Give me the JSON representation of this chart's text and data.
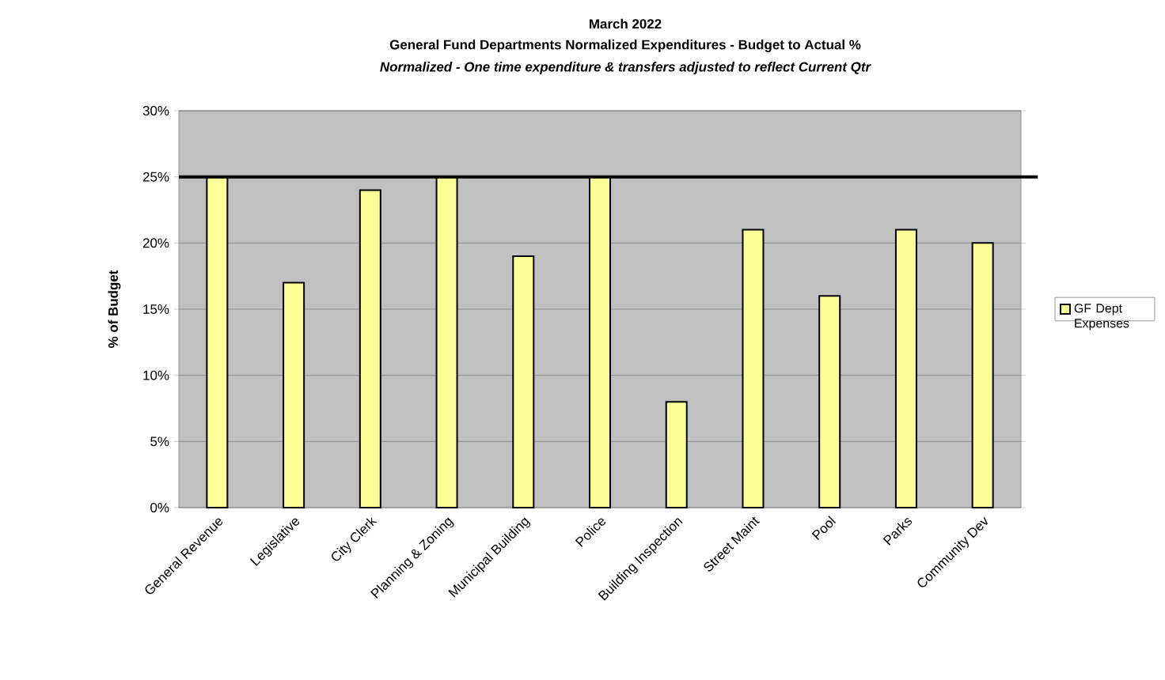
{
  "chart_data": {
    "type": "bar",
    "title": "March 2022",
    "subtitle": "General Fund Departments Normalized Expenditures -  Budget to Actual %",
    "annotations": [
      "Normalized - One time expenditure & transfers adjusted to reflect Current Qtr"
    ],
    "ylabel": "% of Budget",
    "categories": [
      "General Revenue",
      "Legislative",
      "City Clerk",
      "Planning & Zoning",
      "Municipal Building",
      "Police",
      "Building Inspection",
      "Street Maint",
      "Pool",
      "Parks",
      "Community Dev"
    ],
    "series": [
      {
        "name": "GF Dept Expenses",
        "color": "#ffff99",
        "values": [
          25,
          17,
          24,
          25,
          19,
          25,
          8,
          21,
          16,
          21,
          20
        ]
      }
    ],
    "ylim": [
      0,
      30
    ],
    "yticks": [
      {
        "value": 0,
        "label": "0%"
      },
      {
        "value": 5,
        "label": "5%"
      },
      {
        "value": 10,
        "label": "10%"
      },
      {
        "value": 15,
        "label": "15%"
      },
      {
        "value": 20,
        "label": "20%"
      },
      {
        "value": 25,
        "label": "25%"
      },
      {
        "value": 30,
        "label": "30%"
      }
    ],
    "ref_lines": [
      {
        "axis": "y",
        "value": 25,
        "color": "#000000"
      }
    ],
    "grid": "y",
    "legend": "right"
  }
}
